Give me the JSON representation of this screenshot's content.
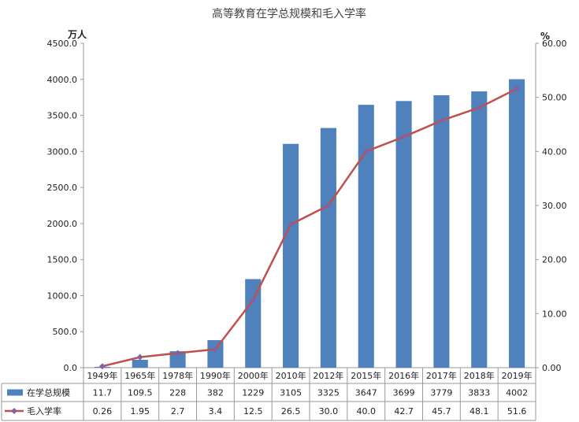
{
  "chart_data": {
    "type": "bar",
    "title": "高等教育在学总规模和毛入学率",
    "categories": [
      "1949年",
      "1965年",
      "1978年",
      "1990年",
      "2000年",
      "2010年",
      "2012年",
      "2015年",
      "2016年",
      "2017年",
      "2018年",
      "2019年"
    ],
    "y_left": {
      "unit": "万人",
      "ylim": [
        0,
        4500
      ],
      "ticks": [
        "0.0",
        "500.0",
        "1000.0",
        "1500.0",
        "2000.0",
        "2500.0",
        "3000.0",
        "3500.0",
        "4000.0",
        "4500.0"
      ]
    },
    "y_right": {
      "unit": "%",
      "ylim": [
        0,
        60
      ],
      "ticks": [
        "0.00",
        "10.00",
        "20.00",
        "30.00",
        "40.00",
        "50.00",
        "60.00"
      ]
    },
    "series": [
      {
        "name": "在学总规模",
        "type": "bar",
        "axis": "left",
        "color": "#4F81BD",
        "values": [
          11.7,
          109.5,
          228,
          382,
          1229,
          3105,
          3325,
          3647,
          3699,
          3779,
          3833,
          4002
        ],
        "labels": [
          "11.7",
          "109.5",
          "228",
          "382",
          "1229",
          "3105",
          "3325",
          "3647",
          "3699",
          "3779",
          "3833",
          "4002"
        ]
      },
      {
        "name": "毛入学率",
        "type": "line",
        "axis": "right",
        "color": "#C0504D",
        "marker_color": "#8064A2",
        "values": [
          0.26,
          1.95,
          2.7,
          3.4,
          12.5,
          26.5,
          30.0,
          40.0,
          42.7,
          45.7,
          48.1,
          51.6
        ],
        "labels": [
          "0.26",
          "1.95",
          "2.7",
          "3.4",
          "12.5",
          "26.5",
          "30.0",
          "40.0",
          "42.7",
          "45.7",
          "48.1",
          "51.6"
        ]
      }
    ],
    "grid": false,
    "legend": "data-table-bottom"
  }
}
